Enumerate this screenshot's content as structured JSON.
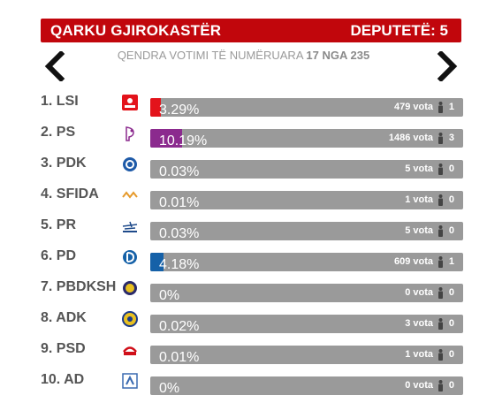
{
  "header": {
    "region": "QARKU GJIROKASTËR",
    "deputies": "DEPUTETË: 5"
  },
  "counted": {
    "prefix": "QENDRA VOTIMI TË NUMËRUARA",
    "value": "17 NGA 235"
  },
  "colors": {
    "header": "#c1060c",
    "bar_bg": "#9a9a9a"
  },
  "parties": [
    {
      "name": "1. LSI",
      "logo": "lsi-logo-icon",
      "pct": "3.29%",
      "share": 3.29,
      "votes": "479 vota",
      "seats": "1",
      "color": "#e3131b"
    },
    {
      "name": "2. PS",
      "logo": "ps-logo-icon",
      "pct": "10.19%",
      "share": 10.19,
      "votes": "1486 vota",
      "seats": "3",
      "color": "#8b2a8e"
    },
    {
      "name": "3. PDK",
      "logo": "pdk-logo-icon",
      "pct": "0.03%",
      "share": 0.03,
      "votes": "5 vota",
      "seats": "0",
      "color": "#1e5aa8"
    },
    {
      "name": "4. SFIDA",
      "logo": "sfida-logo-icon",
      "pct": "0.01%",
      "share": 0.01,
      "votes": "1 vota",
      "seats": "0",
      "color": "#e69a2b"
    },
    {
      "name": "5. PR",
      "logo": "pr-logo-icon",
      "pct": "0.03%",
      "share": 0.03,
      "votes": "5 vota",
      "seats": "0",
      "color": "#1e4a8a"
    },
    {
      "name": "6. PD",
      "logo": "pd-logo-icon",
      "pct": "4.18%",
      "share": 4.18,
      "votes": "609 vota",
      "seats": "1",
      "color": "#1561a8"
    },
    {
      "name": "7. PBDKSH",
      "logo": "pbdksh-logo-icon",
      "pct": "0%",
      "share": 0,
      "votes": "0 vota",
      "seats": "0",
      "color": "#2a2a6a"
    },
    {
      "name": "8. ADK",
      "logo": "adk-logo-icon",
      "pct": "0.02%",
      "share": 0.02,
      "votes": "3 vota",
      "seats": "0",
      "color": "#1a3a8a"
    },
    {
      "name": "9. PSD",
      "logo": "psd-logo-icon",
      "pct": "0.01%",
      "share": 0.01,
      "votes": "1 vota",
      "seats": "0",
      "color": "#d0101a"
    },
    {
      "name": "10. AD",
      "logo": "ad-logo-icon",
      "pct": "0%",
      "share": 0,
      "votes": "0 vota",
      "seats": "0",
      "color": "#3a6ab0"
    }
  ]
}
